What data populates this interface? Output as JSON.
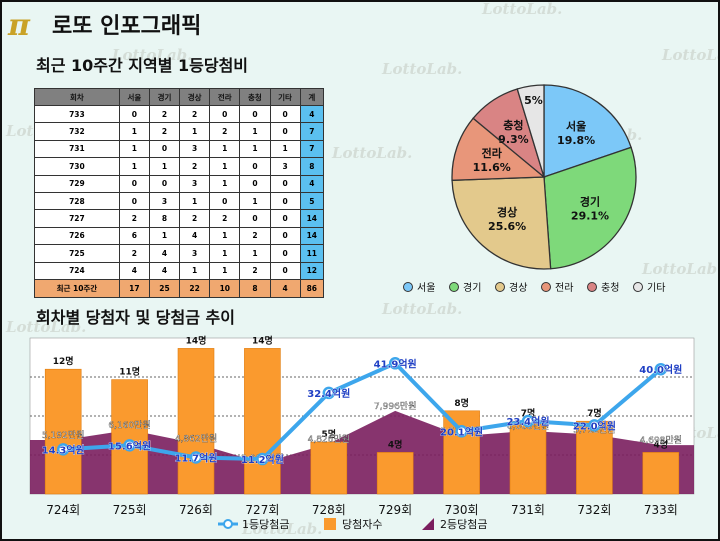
{
  "header": {
    "title": "로또 인포그래픽",
    "logo_glyph": "π"
  },
  "watermark": "LottoLab.",
  "table_section": {
    "title": "최근 10주간 지역별 1등당첨비",
    "headers": [
      "회차",
      "서울",
      "경기",
      "경상",
      "전라",
      "충청",
      "기타",
      "계"
    ],
    "rows": [
      [
        "733",
        "0",
        "2",
        "2",
        "0",
        "0",
        "0",
        "4"
      ],
      [
        "732",
        "1",
        "2",
        "1",
        "2",
        "1",
        "0",
        "7"
      ],
      [
        "731",
        "1",
        "0",
        "3",
        "1",
        "1",
        "1",
        "7"
      ],
      [
        "730",
        "1",
        "1",
        "2",
        "1",
        "0",
        "3",
        "8"
      ],
      [
        "729",
        "0",
        "0",
        "3",
        "1",
        "0",
        "0",
        "4"
      ],
      [
        "728",
        "0",
        "3",
        "1",
        "0",
        "1",
        "0",
        "5"
      ],
      [
        "727",
        "2",
        "8",
        "2",
        "2",
        "0",
        "0",
        "14"
      ],
      [
        "726",
        "6",
        "1",
        "4",
        "1",
        "2",
        "0",
        "14"
      ],
      [
        "725",
        "2",
        "4",
        "3",
        "1",
        "1",
        "0",
        "11"
      ],
      [
        "724",
        "4",
        "4",
        "1",
        "1",
        "2",
        "0",
        "12"
      ]
    ],
    "summary": [
      "최근 10주간",
      "17",
      "25",
      "22",
      "10",
      "8",
      "4",
      "86"
    ]
  },
  "chart_section": {
    "title": "회차별 당첨자 및 당첨금 추이"
  },
  "chart_data": [
    {
      "type": "pie",
      "slices": [
        {
          "label": "서울",
          "value": 19.8,
          "display": "19.8%",
          "color": "#7cc8f8"
        },
        {
          "label": "경기",
          "value": 29.1,
          "display": "29.1%",
          "color": "#7ed97a"
        },
        {
          "label": "경상",
          "value": 25.6,
          "display": "25.6%",
          "color": "#e3c98c"
        },
        {
          "label": "전라",
          "value": 11.6,
          "display": "11.6%",
          "color": "#e8967a"
        },
        {
          "label": "충청",
          "value": 9.3,
          "display": "9.3%",
          "color": "#d98484"
        },
        {
          "label": "기타",
          "value": 4.7,
          "display": "5%",
          "color": "#e6e6e6"
        }
      ],
      "legend": [
        "서울",
        "경기",
        "경상",
        "전라",
        "충청",
        "기타"
      ],
      "legend_position": "bottom"
    },
    {
      "type": "bar",
      "categories": [
        "724회",
        "725회",
        "726회",
        "727회",
        "728회",
        "729회",
        "730회",
        "731회",
        "732회",
        "733회"
      ],
      "series": [
        {
          "name": "당첨자수",
          "type": "bar",
          "color": "#fa9a2e",
          "values": [
            12,
            11,
            14,
            14,
            5,
            4,
            8,
            7,
            7,
            4
          ],
          "labels": [
            "12명",
            "11명",
            "14명",
            "14명",
            "5명",
            "4명",
            "8명",
            "7명",
            "7명",
            "4명"
          ]
        },
        {
          "name": "1등당첨금",
          "type": "line",
          "color": "#3da6ec",
          "values": [
            14.3,
            15.6,
            11.7,
            11.2,
            32.4,
            41.9,
            20.1,
            23.4,
            22.0,
            40.0
          ],
          "labels": [
            "14.3억원",
            "15.6억원",
            "11.7억원",
            "11.2억원",
            "32.4억원",
            "41.9억원",
            "20.1억원",
            "23.4억원",
            "22.0억원",
            "40.0억원"
          ]
        },
        {
          "name": "2등당첨금",
          "type": "area",
          "color": "#7a1e5e",
          "values": [
            5192,
            6160,
            4862,
            2991,
            4826,
            7996,
            5577,
            6068,
            5712,
            4698
          ],
          "labels": [
            "5,192만원",
            "6,160만원",
            "4,862만원",
            "2,991만원",
            "4,826만원",
            "7,996만원",
            "5,577만원",
            "6,068만원",
            "5,712만원",
            "4,698만원"
          ]
        }
      ],
      "legend": [
        "1등당첨금",
        "당첨자수",
        "2등당첨금"
      ],
      "legend_position": "bottom",
      "grid": true
    }
  ]
}
